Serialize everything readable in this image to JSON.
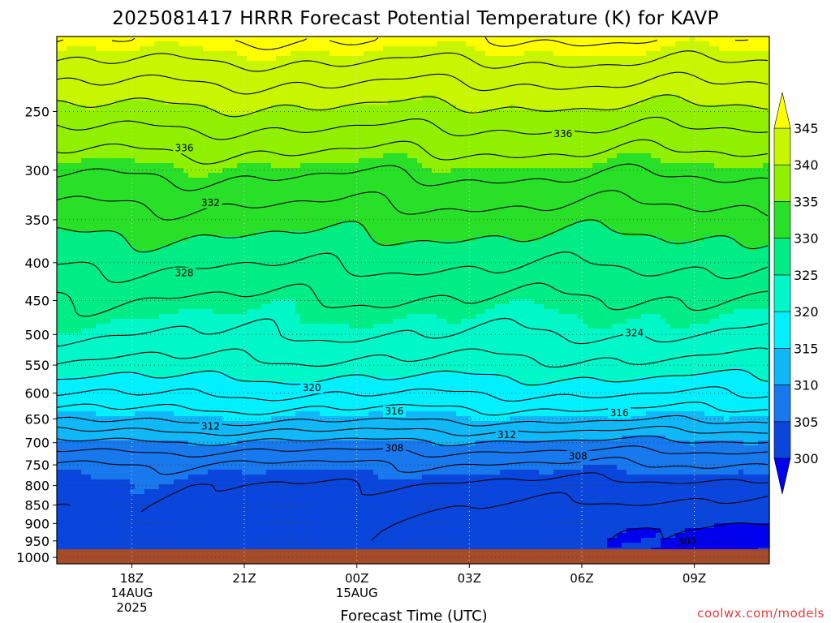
{
  "chart_data": {
    "type": "heatmap",
    "title": "2025081417 HRRR Forecast Potential Temperature (K) for KAVP",
    "xlabel": "Forecast Time (UTC)",
    "ylabel": "",
    "y_axis": {
      "unit": "hPa",
      "scale": "log",
      "inverted": true,
      "range": [
        1020,
        198
      ],
      "ticks": [
        250,
        300,
        350,
        400,
        450,
        500,
        550,
        600,
        650,
        700,
        750,
        800,
        850,
        900,
        950,
        1000
      ]
    },
    "x_axis": {
      "range_hours": [
        -1.0,
        18.0
      ],
      "ticks": [
        {
          "hour": 1,
          "label": "18Z",
          "sub1": "14AUG",
          "sub2": "2025"
        },
        {
          "hour": 4,
          "label": "21Z",
          "sub1": "",
          "sub2": ""
        },
        {
          "hour": 7,
          "label": "00Z",
          "sub1": "15AUG",
          "sub2": ""
        },
        {
          "hour": 10,
          "label": "03Z",
          "sub1": "",
          "sub2": ""
        },
        {
          "hour": 13,
          "label": "06Z",
          "sub1": "",
          "sub2": ""
        },
        {
          "hour": 16,
          "label": "09Z",
          "sub1": "",
          "sub2": ""
        }
      ]
    },
    "grid": true,
    "colorbar": {
      "placement": "right",
      "levels": [
        300,
        305,
        310,
        315,
        320,
        325,
        330,
        335,
        340,
        345
      ],
      "colors": [
        "#0000ee",
        "#0a46dc",
        "#1878ee",
        "#10b8f8",
        "#00f0ff",
        "#00f8c8",
        "#00ec84",
        "#28e028",
        "#90f000",
        "#c8f500",
        "#ffff00"
      ]
    },
    "surface": {
      "color": "#a54b2a",
      "pressure_hpa": 975
    },
    "theta_profiles": {
      "hours": [
        -1,
        0,
        1,
        2,
        3,
        4,
        5,
        6,
        7,
        8,
        9,
        10,
        11,
        12,
        13,
        14,
        15,
        16,
        17,
        18
      ],
      "pressure_levels": [
        200,
        225,
        250,
        275,
        300,
        325,
        350,
        375,
        400,
        425,
        450,
        475,
        500,
        525,
        550,
        575,
        600,
        625,
        650,
        675,
        700,
        725,
        750,
        775,
        800,
        825,
        850,
        875,
        900,
        925,
        950,
        975
      ],
      "base_theta": [
        346.0,
        342.5,
        339.5,
        336.8,
        334.5,
        332.6,
        331.0,
        329.6,
        328.3,
        327.0,
        325.8,
        324.9,
        324.0,
        322.7,
        321.4,
        319.8,
        318.2,
        316.4,
        314.5,
        312.0,
        309.6,
        307.5,
        305.8,
        304.8,
        303.8,
        303.3,
        302.9,
        302.6,
        302.4,
        302.3,
        302.3,
        302.4
      ],
      "low_level_diurnal_anomaly": [
        1.8,
        2.0,
        2.2,
        2.2,
        2.0,
        1.6,
        1.0,
        0.5,
        0.0,
        -0.4,
        -0.8,
        -1.2,
        -1.6,
        -1.9,
        -2.1,
        -2.3,
        -2.4,
        -2.4,
        -2.4,
        -2.4
      ]
    },
    "contour_interval_k": 2,
    "contour_labels": [
      {
        "value": 336,
        "hour": 2.4,
        "pressure": 280
      },
      {
        "value": 336,
        "hour": 12.5,
        "pressure": 268
      },
      {
        "value": 332,
        "hour": 3.1,
        "pressure": 332
      },
      {
        "value": 328,
        "hour": 2.4,
        "pressure": 413
      },
      {
        "value": 324,
        "hour": 14.4,
        "pressure": 498
      },
      {
        "value": 320,
        "hour": 5.8,
        "pressure": 590
      },
      {
        "value": 316,
        "hour": 8.0,
        "pressure": 635
      },
      {
        "value": 316,
        "hour": 14.0,
        "pressure": 638
      },
      {
        "value": 312,
        "hour": 3.1,
        "pressure": 665
      },
      {
        "value": 312,
        "hour": 11.0,
        "pressure": 683
      },
      {
        "value": 308,
        "hour": 8.0,
        "pressure": 712
      },
      {
        "value": 308,
        "hour": 12.9,
        "pressure": 730
      },
      {
        "value": 300,
        "hour": 15.8,
        "pressure": 952
      }
    ]
  },
  "credit": "coolwx.com/models"
}
